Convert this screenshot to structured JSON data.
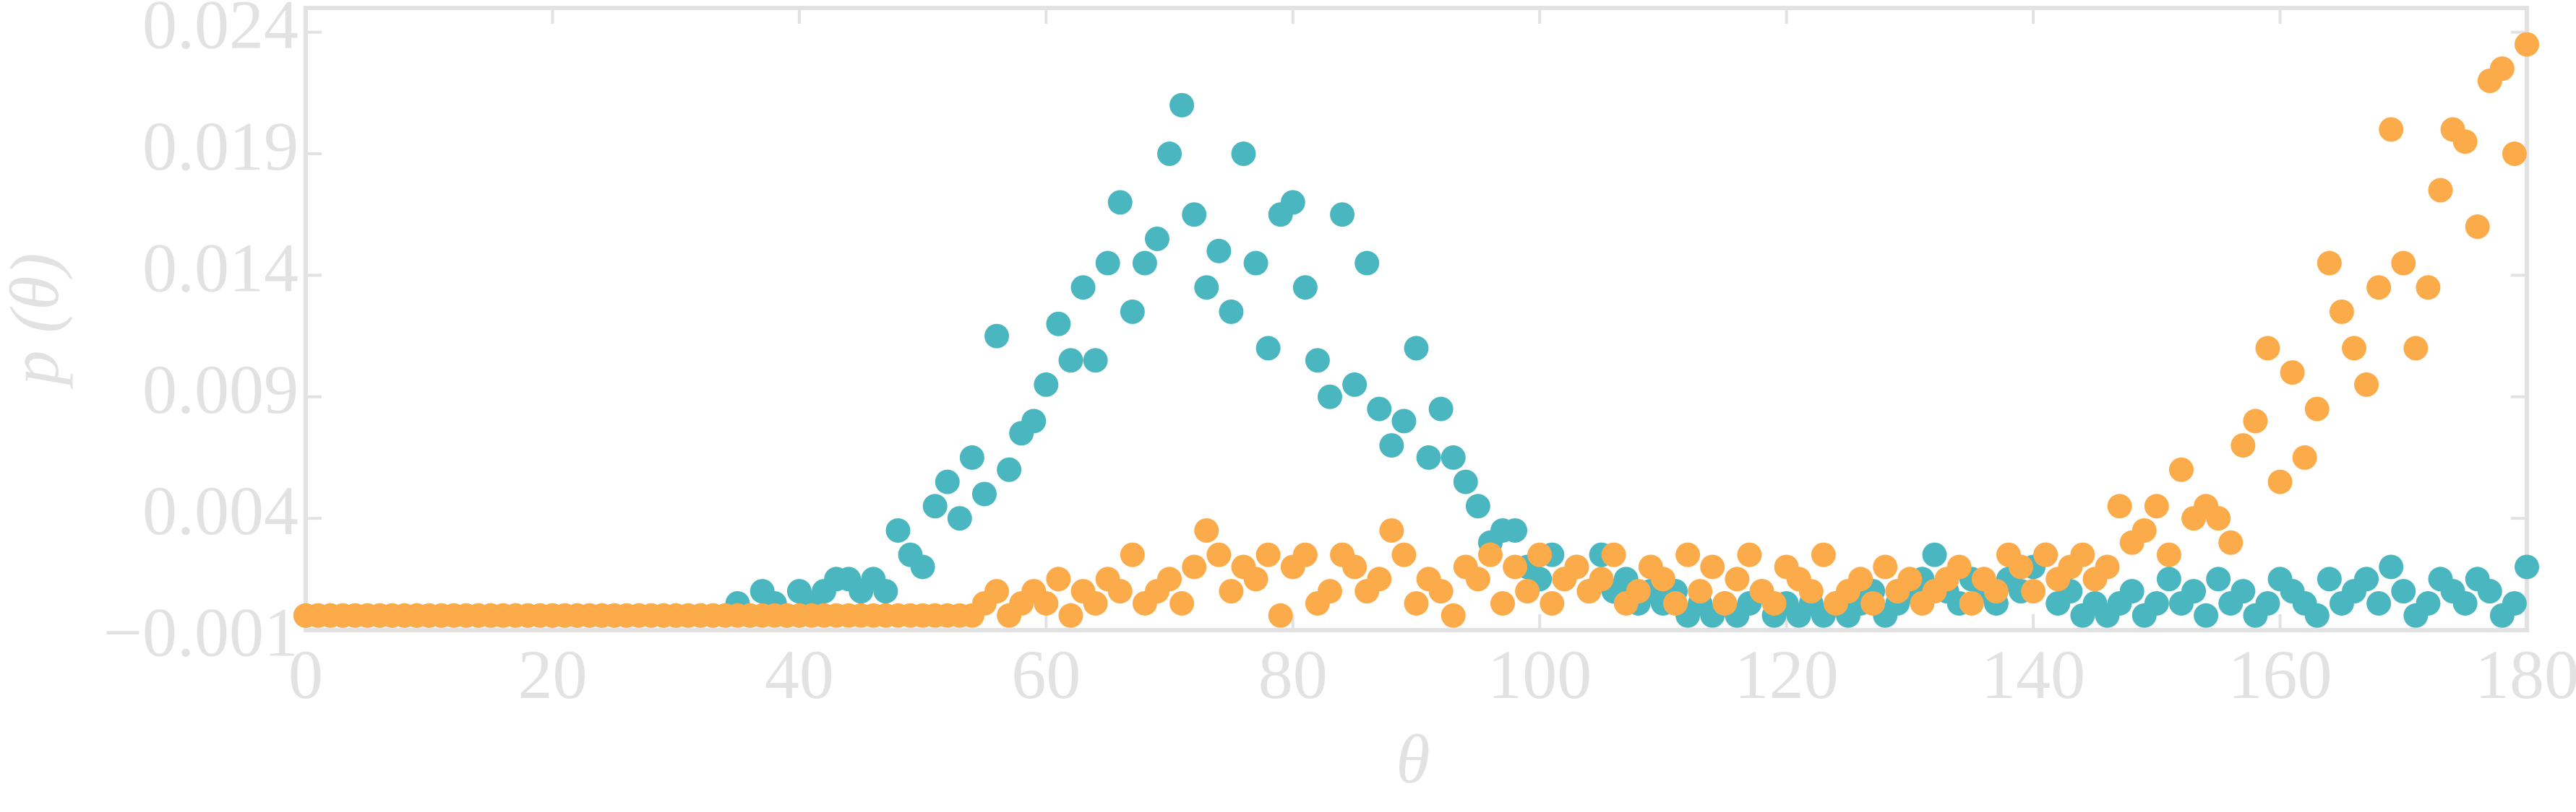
{
  "chart_data": {
    "type": "scatter",
    "xlabel": "θ",
    "ylabel": "p (θ)",
    "xlim": [
      0,
      180
    ],
    "xticks": [
      0,
      20,
      40,
      60,
      80,
      100,
      120,
      140,
      160,
      180
    ],
    "ylim": [
      -0.0006,
      0.025
    ],
    "yticks": [
      {
        "value": -0.001,
        "label": "−0.001"
      },
      0.004,
      0.009,
      0.014,
      0.019,
      0.024
    ],
    "grid": false,
    "x": [
      0,
      1,
      2,
      3,
      4,
      5,
      6,
      7,
      8,
      9,
      10,
      11,
      12,
      13,
      14,
      15,
      16,
      17,
      18,
      19,
      20,
      21,
      22,
      23,
      24,
      25,
      26,
      27,
      28,
      29,
      30,
      31,
      32,
      33,
      34,
      35,
      36,
      37,
      38,
      39,
      40,
      41,
      42,
      43,
      44,
      45,
      46,
      47,
      48,
      49,
      50,
      51,
      52,
      53,
      54,
      55,
      56,
      57,
      58,
      59,
      60,
      61,
      62,
      63,
      64,
      65,
      66,
      67,
      68,
      69,
      70,
      71,
      72,
      73,
      74,
      75,
      76,
      77,
      78,
      79,
      80,
      81,
      82,
      83,
      84,
      85,
      86,
      87,
      88,
      89,
      90,
      91,
      92,
      93,
      94,
      95,
      96,
      97,
      98,
      99,
      100,
      101,
      102,
      103,
      104,
      105,
      106,
      107,
      108,
      109,
      110,
      111,
      112,
      113,
      114,
      115,
      116,
      117,
      118,
      119,
      120,
      121,
      122,
      123,
      124,
      125,
      126,
      127,
      128,
      129,
      130,
      131,
      132,
      133,
      134,
      135,
      136,
      137,
      138,
      139,
      140,
      141,
      142,
      143,
      144,
      145,
      146,
      147,
      148,
      149,
      150,
      151,
      152,
      153,
      154,
      155,
      156,
      157,
      158,
      159,
      160,
      161,
      162,
      163,
      164,
      165,
      166,
      167,
      168,
      169,
      170,
      171,
      172,
      173,
      174,
      175,
      176,
      177,
      178,
      179,
      180
    ],
    "series": [
      {
        "color": "#4ab6c0",
        "values": [
          0,
          0,
          0,
          0,
          0,
          0,
          0,
          0,
          0,
          0,
          0,
          0,
          0,
          0,
          0,
          0,
          0,
          0,
          0,
          0,
          0,
          0,
          0,
          0,
          0,
          0,
          0,
          0,
          0,
          0,
          0,
          0,
          0,
          0,
          0,
          0.0005,
          0,
          0.001,
          0.0005,
          0,
          0.001,
          0.0005,
          0.001,
          0.0015,
          0.0015,
          0.001,
          0.0015,
          0.001,
          0.0035,
          0.0025,
          0.002,
          0.0045,
          0.0055,
          0.004,
          0.0065,
          0.005,
          0.0115,
          0.006,
          0.0075,
          0.008,
          0.0095,
          0.012,
          0.0105,
          0.0135,
          0.0105,
          0.0145,
          0.017,
          0.0125,
          0.0145,
          0.0155,
          0.019,
          0.021,
          0.0165,
          0.0135,
          0.015,
          0.0125,
          0.019,
          0.0145,
          0.011,
          0.0165,
          0.017,
          0.0135,
          0.0105,
          0.009,
          0.0165,
          0.0095,
          0.0145,
          0.0085,
          0.007,
          0.008,
          0.011,
          0.0065,
          0.0085,
          0.0065,
          0.0055,
          0.0045,
          0.003,
          0.0035,
          0.0035,
          0.002,
          0.0015,
          0.0025,
          0.0015,
          0.002,
          0.001,
          0.0025,
          0.001,
          0.0015,
          0.0005,
          0.001,
          0.0005,
          0.001,
          0,
          0.0005,
          0,
          0.0005,
          0,
          0.0005,
          0.001,
          0,
          0.0005,
          0,
          0.0005,
          0,
          0.0005,
          0,
          0.0005,
          0.001,
          0,
          0.0005,
          0.001,
          0.0015,
          0.0025,
          0.001,
          0.0005,
          0.0015,
          0.001,
          0.0005,
          0.0015,
          0.001,
          0.002,
          0.0025,
          0.0005,
          0.001,
          0,
          0.0005,
          0,
          0.0005,
          0.001,
          0,
          0.0005,
          0.0015,
          0.0005,
          0.001,
          0,
          0.0015,
          0.0005,
          0.001,
          0,
          0.0005,
          0.0015,
          0.001,
          0.0005,
          0,
          0.0015,
          0.0005,
          0.001,
          0.0015,
          0.0005,
          0.002,
          0.001,
          0,
          0.0005,
          0.0015,
          0.001,
          0.0005,
          0.0015,
          0.001,
          0,
          0.0005,
          0.002
        ]
      },
      {
        "color": "#fbab49",
        "values": [
          0,
          0,
          0,
          0,
          0,
          0,
          0,
          0,
          0,
          0,
          0,
          0,
          0,
          0,
          0,
          0,
          0,
          0,
          0,
          0,
          0,
          0,
          0,
          0,
          0,
          0,
          0,
          0,
          0,
          0,
          0,
          0,
          0,
          0,
          0,
          0,
          0,
          0,
          0,
          0,
          0,
          0,
          0,
          0,
          0,
          0,
          0,
          0,
          0,
          0,
          0,
          0,
          0,
          0,
          0,
          0.0005,
          0.001,
          0,
          0.0005,
          0.001,
          0.0005,
          0.0015,
          0,
          0.001,
          0.0005,
          0.0015,
          0.001,
          0.0025,
          0.0005,
          0.001,
          0.0015,
          0.0005,
          0.002,
          0.0035,
          0.0025,
          0.001,
          0.002,
          0.0015,
          0.0025,
          0,
          0.002,
          0.0025,
          0.0005,
          0.001,
          0.0025,
          0.002,
          0.001,
          0.0015,
          0.0035,
          0.0025,
          0.0005,
          0.0015,
          0.001,
          0,
          0.002,
          0.0015,
          0.0025,
          0.0005,
          0.002,
          0.001,
          0.0025,
          0.0005,
          0.0015,
          0.002,
          0.001,
          0.0015,
          0.0025,
          0.0005,
          0.001,
          0.002,
          0.0015,
          0.0005,
          0.0025,
          0.001,
          0.002,
          0.0005,
          0.0015,
          0.0025,
          0.001,
          0.0005,
          0.002,
          0.0015,
          0.001,
          0.0025,
          0.0005,
          0.001,
          0.0015,
          0.0005,
          0.002,
          0.001,
          0.0015,
          0.0005,
          0.001,
          0.0015,
          0.002,
          0.0005,
          0.0015,
          0.001,
          0.0025,
          0.002,
          0.001,
          0.0025,
          0.0015,
          0.002,
          0.0025,
          0.0015,
          0.002,
          0.0045,
          0.003,
          0.0035,
          0.0045,
          0.0025,
          0.006,
          0.004,
          0.0045,
          0.004,
          0.003,
          0.007,
          0.008,
          0.011,
          0.0055,
          0.01,
          0.0065,
          0.0085,
          0.0145,
          0.0125,
          0.011,
          0.0095,
          0.0135,
          0.02,
          0.0145,
          0.011,
          0.0135,
          0.0175,
          0.02,
          0.0195,
          0.016,
          0.022,
          0.0225,
          0.019,
          0.0235
        ]
      }
    ]
  }
}
